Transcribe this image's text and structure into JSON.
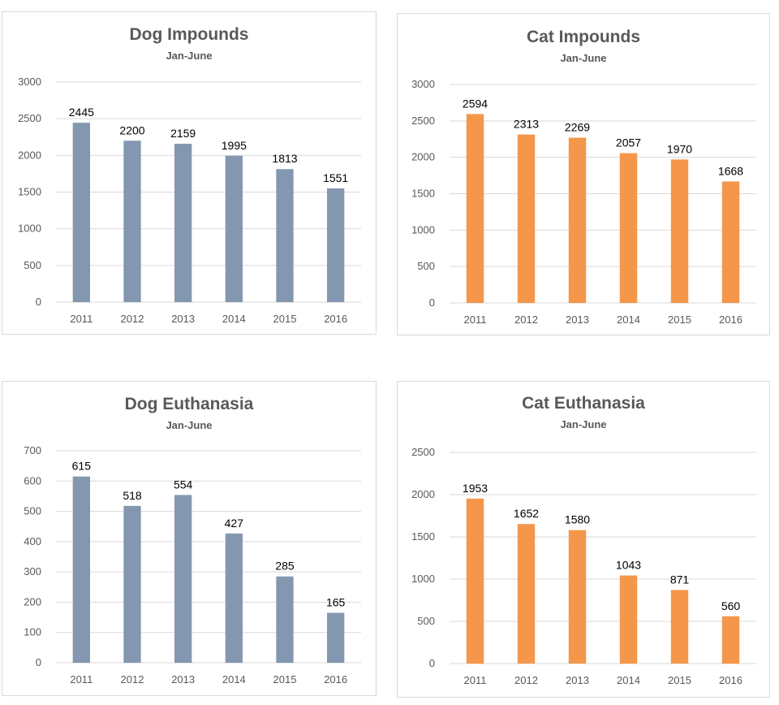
{
  "chart_data": [
    {
      "type": "bar",
      "title": "Dog Impounds",
      "subtitle": "Jan-June",
      "categories": [
        "2011",
        "2012",
        "2013",
        "2014",
        "2015",
        "2016"
      ],
      "values": [
        2445,
        2200,
        2159,
        1995,
        1813,
        1551
      ],
      "ylim": [
        0,
        3000
      ],
      "yticks": [
        0,
        500,
        1000,
        1500,
        2000,
        2500,
        3000
      ],
      "color": "#8497b0",
      "xlabel": "",
      "ylabel": "",
      "grid": true
    },
    {
      "type": "bar",
      "title": "Cat Impounds",
      "subtitle": "Jan-June",
      "categories": [
        "2011",
        "2012",
        "2013",
        "2014",
        "2015",
        "2016"
      ],
      "values": [
        2594,
        2313,
        2269,
        2057,
        1970,
        1668
      ],
      "ylim": [
        0,
        3000
      ],
      "yticks": [
        0,
        500,
        1000,
        1500,
        2000,
        2500,
        3000
      ],
      "color": "#f4974a",
      "xlabel": "",
      "ylabel": "",
      "grid": true
    },
    {
      "type": "bar",
      "title": "Dog Euthanasia",
      "subtitle": "Jan-June",
      "categories": [
        "2011",
        "2012",
        "2013",
        "2014",
        "2015",
        "2016"
      ],
      "values": [
        615,
        518,
        554,
        427,
        285,
        165
      ],
      "ylim": [
        0,
        700
      ],
      "yticks": [
        0,
        100,
        200,
        300,
        400,
        500,
        600,
        700
      ],
      "color": "#8497b0",
      "xlabel": "",
      "ylabel": "",
      "grid": true
    },
    {
      "type": "bar",
      "title": "Cat Euthanasia",
      "subtitle": "Jan-June",
      "categories": [
        "2011",
        "2012",
        "2013",
        "2014",
        "2015",
        "2016"
      ],
      "values": [
        1953,
        1652,
        1580,
        1043,
        871,
        560
      ],
      "ylim": [
        0,
        2500
      ],
      "yticks": [
        0,
        500,
        1000,
        1500,
        2000,
        2500
      ],
      "color": "#f4974a",
      "xlabel": "",
      "ylabel": "",
      "grid": true
    }
  ]
}
